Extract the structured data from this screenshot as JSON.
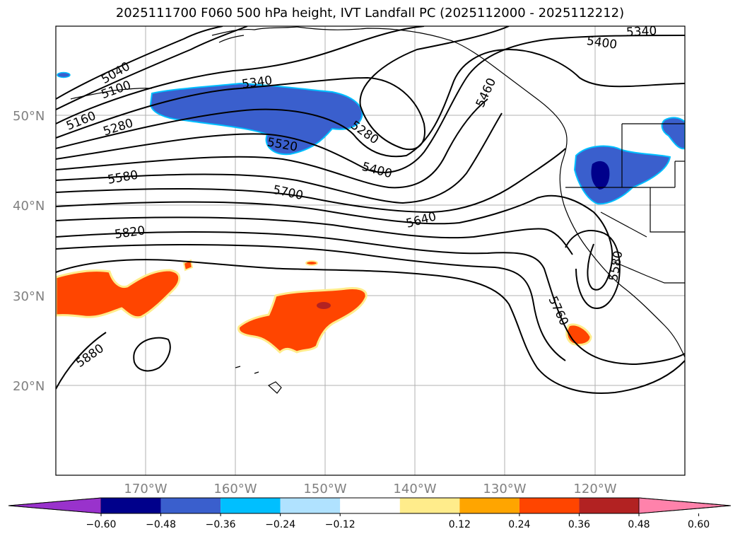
{
  "title": "2025111700 F060 500 hPa height, IVT Landfall PC (2025112000 - 2025112212)",
  "map": {
    "lat_labels": [
      "50°N",
      "40°N",
      "30°N",
      "20°N"
    ],
    "lon_labels": [
      "170°W",
      "160°W",
      "150°W",
      "140°W",
      "130°W",
      "120°W"
    ],
    "contour_labels": [
      "5040",
      "5100",
      "5160",
      "5280",
      "5340",
      "5520",
      "5280",
      "5400",
      "5460",
      "5580",
      "5700",
      "5640",
      "5820",
      "5880",
      "5760",
      "5580",
      "5340",
      "5400"
    ],
    "colors": {
      "line": "#000000",
      "grid": "#b0b0b0",
      "neg_strong": "#00008b",
      "neg_mid": "#3a5fcd",
      "neg_light": "#00bfff",
      "pos_mid": "#ff4500",
      "pos_strong": "#b22222",
      "pos_light": "#ffec8b"
    }
  },
  "colorbar": {
    "ticks": [
      "−0.60",
      "−0.48",
      "−0.36",
      "−0.24",
      "−0.12",
      "0.12",
      "0.24",
      "0.36",
      "0.48",
      "0.60"
    ],
    "colors": [
      "#9932cc",
      "#00008b",
      "#3a5fcd",
      "#00bfff",
      "#b0e2ff",
      "#ffffff",
      "#ffec8b",
      "#ffa500",
      "#ff4500",
      "#b22222",
      "#ff82ab"
    ]
  }
}
